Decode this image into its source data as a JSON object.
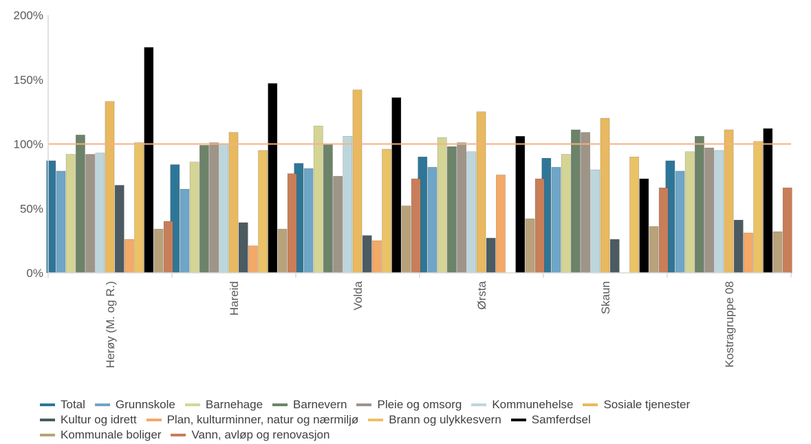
{
  "chart_data": {
    "type": "bar",
    "categories": [
      "Herøy (M. og R.)",
      "Hareid",
      "Volda",
      "Ørsta",
      "Skaun",
      "Kostragruppe 08"
    ],
    "y_ticks": [
      "0%",
      "50%",
      "100%",
      "150%",
      "200%"
    ],
    "ylim": [
      0,
      200
    ],
    "y_unit": "%",
    "reference_line": {
      "value": 100,
      "color": "#F4B183"
    },
    "grid": false,
    "legend_position": "bottom",
    "series": [
      {
        "name": "Total",
        "color": "#2E7698",
        "values": [
          87,
          84,
          85,
          90,
          89,
          87
        ]
      },
      {
        "name": "Grunnskole",
        "color": "#6FA5C6",
        "values": [
          79,
          65,
          81,
          82,
          82,
          79
        ]
      },
      {
        "name": "Barnehage",
        "color": "#D4D595",
        "values": [
          92,
          86,
          114,
          105,
          92,
          94
        ]
      },
      {
        "name": "Barnevern",
        "color": "#6D8369",
        "values": [
          107,
          99,
          100,
          98,
          111,
          106
        ]
      },
      {
        "name": "Pleie og omsorg",
        "color": "#9E9488",
        "values": [
          92,
          101,
          75,
          101,
          109,
          97
        ]
      },
      {
        "name": "Kommunehelse",
        "color": "#BDD6DC",
        "values": [
          93,
          100,
          106,
          94,
          80,
          95
        ]
      },
      {
        "name": "Sosiale tjenester",
        "color": "#E8B95F",
        "values": [
          133,
          109,
          142,
          125,
          120,
          111
        ]
      },
      {
        "name": "Kultur og idrett",
        "color": "#4C5A61",
        "values": [
          68,
          39,
          29,
          27,
          26,
          41
        ]
      },
      {
        "name": "Plan, kulturminner, natur og nærmiljø",
        "color": "#F4A966",
        "values": [
          26,
          21,
          25,
          76,
          0,
          31
        ]
      },
      {
        "name": "Brann og ulykkesvern",
        "color": "#EBC266",
        "values": [
          101,
          95,
          96,
          0,
          90,
          102
        ]
      },
      {
        "name": "Samferdsel",
        "color": "#000000",
        "values": [
          175,
          147,
          136,
          106,
          73,
          112
        ]
      },
      {
        "name": "Kommunale boliger",
        "color": "#B9A27A",
        "values": [
          34,
          34,
          52,
          42,
          36,
          32
        ]
      },
      {
        "name": "Vann, avløp og renovasjon",
        "color": "#C87E59",
        "values": [
          40,
          77,
          73,
          73,
          66,
          66
        ]
      }
    ],
    "legend_rows": [
      [
        0,
        1,
        2,
        3,
        4,
        5,
        6
      ],
      [
        7,
        8,
        9,
        10
      ],
      [
        11,
        12
      ]
    ]
  }
}
